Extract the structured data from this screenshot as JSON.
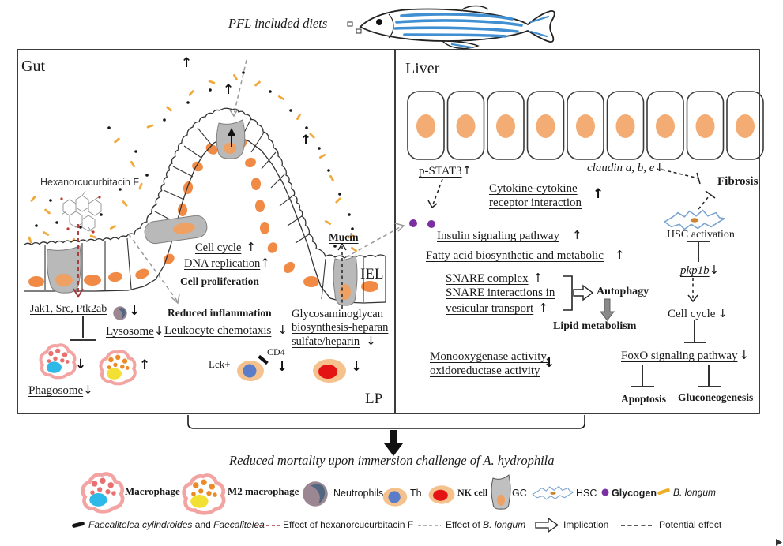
{
  "title": "PFL included diets",
  "sym": {
    "up": "↑",
    "down": "↓"
  },
  "gut": {
    "label": "Gut",
    "hexanorcucurbitacin": "Hexanorcucurbitacin F",
    "jak": "Jak1, Src, Ptk2ab",
    "phagosome": "Phagosome",
    "lysosome": "Lysosome",
    "reduced_inflammation": "Reduced inflammation",
    "leukocyte_chemotaxis": "Leukocyte chemotaxis",
    "cell_cycle": "Cell cycle",
    "dna_replication": "DNA replication",
    "cell_proliferation": "Cell proliferation",
    "mucin": "Mucin",
    "iel": "IEL",
    "glyco_line1": "Glycosaminoglycan",
    "glyco_line2": "biosynthesis-heparan",
    "glyco_line3": "sulfate/heparin",
    "lck": "Lck+",
    "cd4": "CD4",
    "lp": "LP"
  },
  "liver": {
    "label": "Liver",
    "pstat3": "p-STAT3",
    "claudin": "claudin a, b, e",
    "fibrosis": "Fibrosis",
    "cytokine_line1": "Cytokine-cytokine",
    "cytokine_line2": "receptor interaction",
    "insulin": "Insulin signaling pathway",
    "fatty_acid": "Fatty acid biosynthetic and metabolic",
    "snare_complex": "SNARE complex",
    "snare_line1": "SNARE interactions in",
    "snare_line2": "vesicular transport",
    "autophagy": "Autophagy",
    "lipid_metabolism": "Lipid metabolism",
    "mono_line1": "Monooxygenase activity,",
    "mono_line2": "oxidoreductase activity",
    "hsc_activation": "HSC activation",
    "pkp1b": "pkp1b",
    "cell_cycle": "Cell cycle",
    "foxo": "FoxO signaling pathway",
    "apoptosis": "Apoptosis",
    "gluconeogenesis": "Gluconeogenesis"
  },
  "outcome": "Reduced mortality upon immersion challenge of A. hydrophila",
  "legend": {
    "macrophage": "Macrophage",
    "m2_macrophage": "M2 macrophage",
    "neutrophils": "Neutrophils",
    "th": "Th",
    "nk_cell": "NK cell",
    "gc": "GC",
    "hsc": "HSC",
    "glycogen": "Glycogen",
    "b_longum": "B. longum",
    "faecalitelea_species1": "Faecalitelea cylindroides",
    "faecalitelea_and": "and",
    "faecalitelea_species2": "Faecalitelea",
    "effect_hexa": "Effect of hexanorcucurbitacin F",
    "effect_blongum_prefix": "Effect of",
    "effect_blongum_species": "B. longum",
    "implication": "Implication",
    "potential_effect": "Potential effect"
  },
  "colors": {
    "epithelium_nucleus": "#f08a45",
    "hepatocyte_nucleus": "#f3ac74",
    "goblet_gray": "#b9b9b9",
    "macrophage_pink": "#f2a3a2",
    "macrophage_nucleus_blue": "#2fb9e8",
    "m2_nucleus_yellow": "#f2e035",
    "th_nucleus_blue": "#5b7cc9",
    "nk_nucleus_red": "#e41414",
    "hsc_blue": "#7ba4d0",
    "glycogen_purple": "#7b2fa0",
    "b_longum_orange": "#efae2a",
    "zebrafish_stripe_blue": "#3f8fd2",
    "effect_hexa_red": "#a83232",
    "effect_blongum_gray": "#999999"
  }
}
